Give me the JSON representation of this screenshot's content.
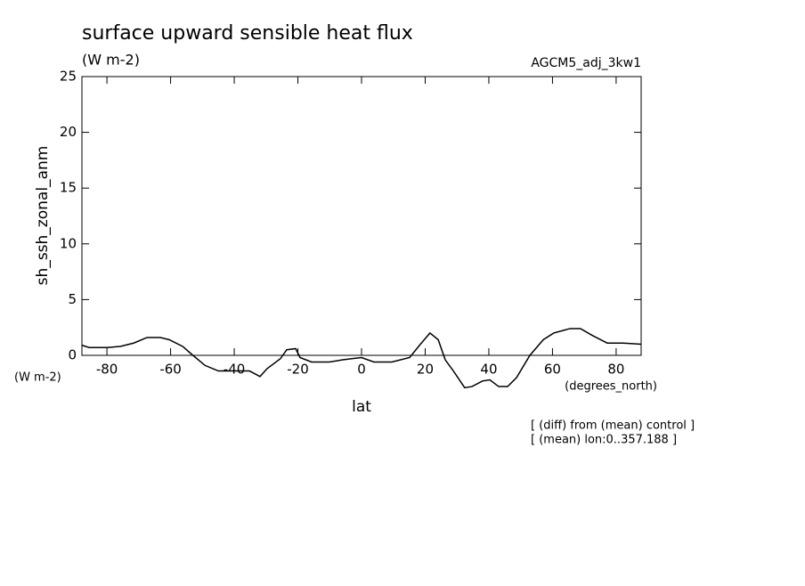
{
  "chart_data": {
    "type": "line",
    "title": "surface upward sensible heat flux",
    "subtitle": "(W m-2)",
    "run_label": "AGCM5_adj_3kw1",
    "y_label": "sh_ssh_zonal_anm",
    "y_unit": "(W m-2)",
    "x_label": "lat",
    "x_unit": "(degrees_north)",
    "notes": [
      "[ (diff) from (mean) control ]",
      "[ (mean) lon:0..357.188 ]"
    ],
    "xlim": [
      -87.86,
      87.86
    ],
    "xticks": [
      -80,
      -60,
      -40,
      -20,
      0,
      20,
      40,
      60,
      80
    ],
    "ylim": [
      0,
      25
    ],
    "yticks": [
      0,
      5,
      10,
      15,
      20,
      25
    ],
    "grid": false,
    "series": [
      {
        "color": "#000000",
        "x": [
          -87.8,
          -85.6,
          -80,
          -75.8,
          -71.6,
          -67.4,
          -63.2,
          -60.4,
          -56.2,
          -53.4,
          -49.2,
          -45,
          -40.8,
          -35.2,
          -31.9,
          -29.7,
          -25.5,
          -23.5,
          -20.7,
          -19.3,
          -15.7,
          -10.1,
          -5.9,
          -3.1,
          0,
          3.9,
          9.5,
          15.1,
          18.5,
          21.5,
          24.1,
          26.3,
          29.1,
          32.4,
          34.7,
          38,
          40.3,
          43.1,
          45.9,
          48.7,
          52.9,
          57.1,
          60.4,
          65.5,
          68.8,
          72.4,
          77.2,
          82.2,
          87.8
        ],
        "values": [
          0.9,
          0.7,
          0.7,
          0.8,
          1.1,
          1.6,
          1.6,
          1.4,
          0.8,
          0.1,
          -0.9,
          -1.4,
          -1.4,
          -1.4,
          -1.9,
          -1.2,
          -0.3,
          0.5,
          0.6,
          -0.2,
          -0.6,
          -0.6,
          -0.4,
          -0.3,
          -0.2,
          -0.6,
          -0.6,
          -0.2,
          1.0,
          2.0,
          1.4,
          -0.4,
          -1.5,
          -2.9,
          -2.8,
          -2.3,
          -2.2,
          -2.8,
          -2.8,
          -2.0,
          0,
          1.4,
          2.0,
          2.4,
          2.4,
          1.8,
          1.1,
          1.1,
          1.0
        ]
      }
    ]
  }
}
